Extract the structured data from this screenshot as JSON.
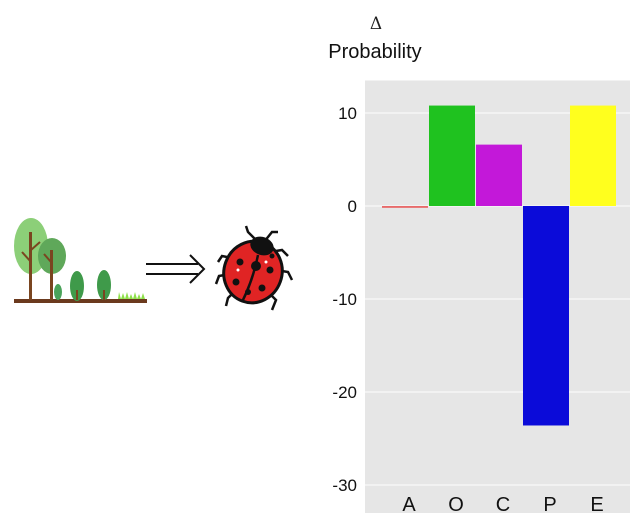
{
  "illustration": {
    "trees_icon": "forest-trees-icon",
    "arrow_icon": "double-arrow-right-icon",
    "ladybug_icon": "ladybug-icon"
  },
  "chart_data": {
    "type": "bar",
    "ylabel_symbol": "Δ",
    "ylabel": "Probability",
    "categories": [
      "A",
      "O",
      "C",
      "P",
      "E"
    ],
    "values": [
      -0.2,
      10.8,
      6.6,
      -23.6,
      10.8
    ],
    "colors": [
      "#e86a6a",
      "#1fc21f",
      "#c318d9",
      "#0b0bd9",
      "#ffff1e"
    ],
    "ylim": [
      -30,
      13.5
    ],
    "yticks": [
      10,
      0,
      -10,
      -20,
      -30
    ],
    "ytick_labels": [
      "10",
      "0",
      "-10",
      "-20",
      "-30"
    ],
    "grid": true,
    "background": "#e6e6e6"
  }
}
